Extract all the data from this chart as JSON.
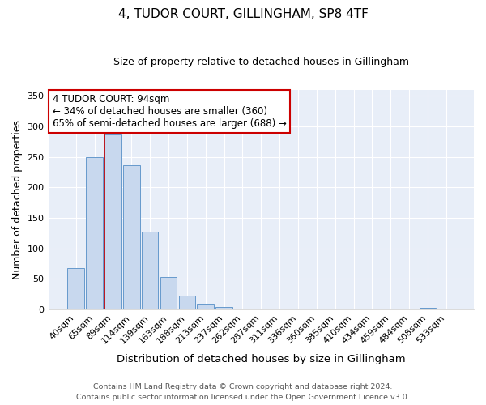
{
  "title": "4, TUDOR COURT, GILLINGHAM, SP8 4TF",
  "subtitle": "Size of property relative to detached houses in Gillingham",
  "xlabel": "Distribution of detached houses by size in Gillingham",
  "ylabel": "Number of detached properties",
  "bar_labels": [
    "40sqm",
    "65sqm",
    "89sqm",
    "114sqm",
    "139sqm",
    "163sqm",
    "188sqm",
    "213sqm",
    "237sqm",
    "262sqm",
    "287sqm",
    "311sqm",
    "336sqm",
    "360sqm",
    "385sqm",
    "410sqm",
    "434sqm",
    "459sqm",
    "484sqm",
    "508sqm",
    "533sqm"
  ],
  "bar_values": [
    68,
    250,
    287,
    236,
    128,
    53,
    22,
    10,
    4,
    0,
    0,
    0,
    0,
    0,
    0,
    0,
    0,
    0,
    0,
    3,
    0
  ],
  "bar_color": "#c8d8ee",
  "bar_edgecolor": "#6699cc",
  "vline_color": "#cc0000",
  "vline_xindex": 2,
  "annotation_line1": "4 TUDOR COURT: 94sqm",
  "annotation_line2": "← 34% of detached houses are smaller (360)",
  "annotation_line3": "65% of semi-detached houses are larger (688) →",
  "annotation_box_color": "#ffffff",
  "annotation_box_edgecolor": "#cc0000",
  "ylim": [
    0,
    360
  ],
  "yticks": [
    0,
    50,
    100,
    150,
    200,
    250,
    300,
    350
  ],
  "footer1": "Contains HM Land Registry data © Crown copyright and database right 2024.",
  "footer2": "Contains public sector information licensed under the Open Government Licence v3.0.",
  "bg_color": "#ffffff",
  "plot_bg_color": "#e8eef8",
  "grid_color": "#ffffff",
  "title_fontsize": 11,
  "subtitle_fontsize": 9,
  "ylabel_fontsize": 9,
  "xlabel_fontsize": 9.5,
  "tick_fontsize": 8,
  "annotation_fontsize": 8.5,
  "footer_fontsize": 6.8
}
